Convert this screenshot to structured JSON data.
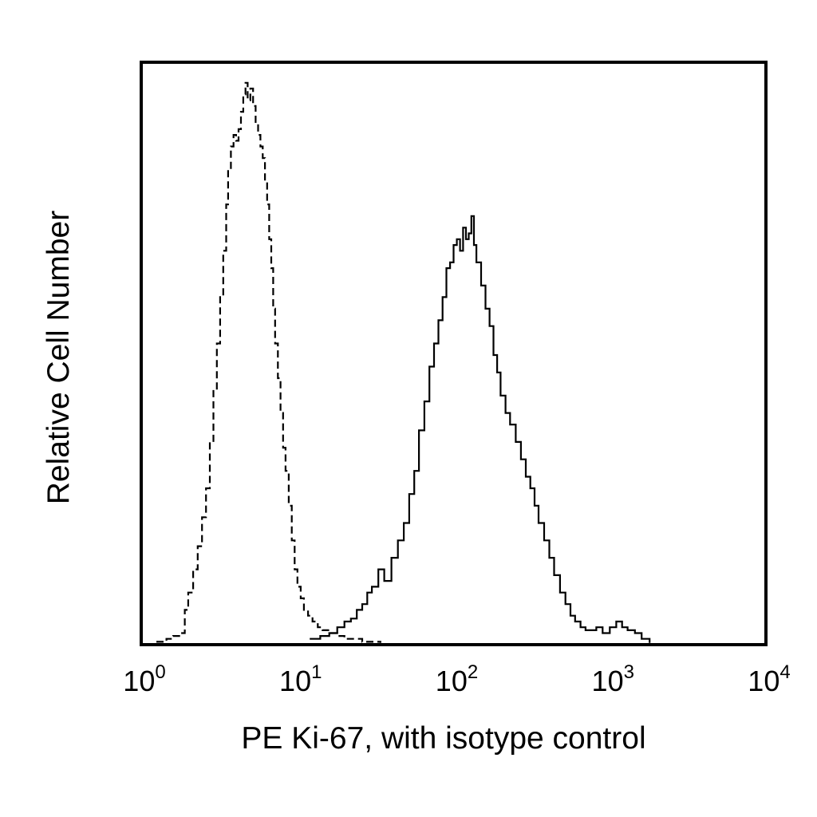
{
  "chart_data": {
    "type": "line",
    "title": "",
    "xlabel": "PE Ki-67, with isotype control",
    "ylabel": "Relative Cell Number",
    "x_scale": "log",
    "xlim": [
      1,
      10000
    ],
    "ylim": [
      0,
      100
    ],
    "grid": false,
    "x_ticks": [
      {
        "base": "10",
        "exp": "0",
        "value": 1
      },
      {
        "base": "10",
        "exp": "1",
        "value": 10
      },
      {
        "base": "10",
        "exp": "2",
        "value": 100
      },
      {
        "base": "10",
        "exp": "3",
        "value": 1000
      },
      {
        "base": "10",
        "exp": "4",
        "value": 10000
      }
    ],
    "series": [
      {
        "style": "dashed",
        "x": [
          1.25,
          1.45,
          1.6,
          1.75,
          1.9,
          2.0,
          2.15,
          2.3,
          2.45,
          2.6,
          2.75,
          2.9,
          3.05,
          3.2,
          3.35,
          3.5,
          3.6,
          3.75,
          3.9,
          4.05,
          4.2,
          4.35,
          4.5,
          4.65,
          4.8,
          5.0,
          5.2,
          5.4,
          5.6,
          5.8,
          6.0,
          6.2,
          6.4,
          6.6,
          6.8,
          7.0,
          7.2,
          7.5,
          7.8,
          8.1,
          8.4,
          8.8,
          9.2,
          9.6,
          10.0,
          10.5,
          11.0,
          11.7,
          12.5,
          13.5,
          14.5,
          16,
          18,
          20,
          23,
          26,
          30,
          34
        ],
        "y": [
          0.5,
          1,
          1.5,
          2,
          6,
          9,
          13,
          17,
          22,
          27,
          35,
          44,
          52,
          60,
          68,
          76,
          82,
          86,
          88,
          87,
          89,
          92,
          95,
          97,
          94,
          96,
          93,
          90,
          88,
          86,
          84,
          80,
          76,
          70,
          65,
          58,
          52,
          46,
          40,
          34,
          30,
          24,
          18,
          13,
          10,
          8,
          6,
          5,
          4,
          3,
          2.5,
          2,
          1.5,
          1,
          1,
          0.5,
          0.5,
          0.3
        ]
      },
      {
        "style": "solid",
        "x": [
          12,
          14,
          16,
          18,
          20,
          22,
          24,
          26,
          28,
          30,
          33,
          36,
          40,
          44,
          48,
          52,
          56,
          60,
          65,
          70,
          75,
          80,
          85,
          90,
          95,
          100,
          105,
          110,
          115,
          120,
          125,
          130,
          135,
          140,
          150,
          160,
          170,
          180,
          190,
          200,
          215,
          230,
          250,
          270,
          290,
          310,
          330,
          350,
          380,
          410,
          440,
          480,
          520,
          560,
          600,
          650,
          700,
          760,
          820,
          900,
          1000,
          1100,
          1200,
          1300,
          1450,
          1600,
          1800
        ],
        "y": [
          1,
          1.5,
          2,
          3,
          4,
          4.5,
          6,
          7,
          9,
          10,
          13,
          11,
          15,
          18,
          21,
          26,
          30,
          37,
          42,
          48,
          52,
          56,
          60,
          65,
          66,
          69,
          70,
          68,
          72,
          70,
          71,
          74,
          69,
          66,
          62,
          58,
          55,
          50,
          47,
          43,
          40,
          38,
          35,
          32,
          29,
          27,
          24,
          21,
          18,
          15,
          12,
          9,
          7,
          5,
          4,
          3,
          2.5,
          2.5,
          3,
          2,
          3,
          4,
          3,
          2.5,
          2,
          1,
          0.3
        ]
      }
    ]
  }
}
